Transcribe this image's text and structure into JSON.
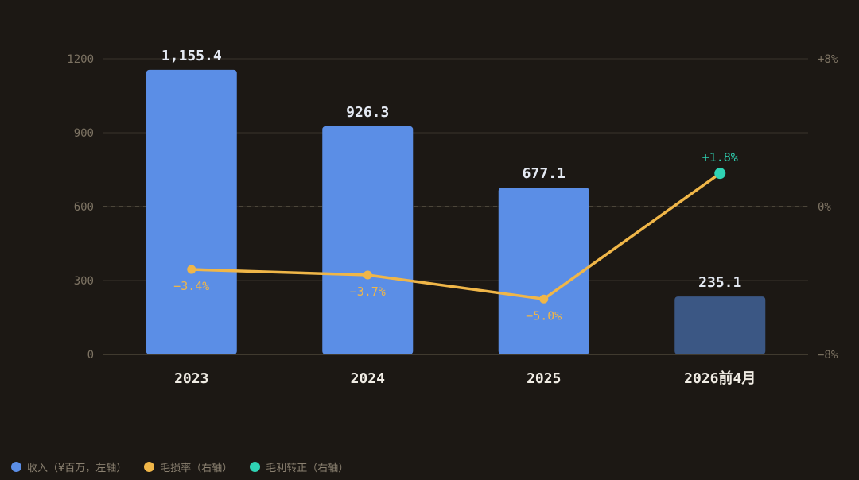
{
  "chart_data": {
    "type": "bar",
    "categories": [
      "2023",
      "2024",
      "2025",
      "2026前4月"
    ],
    "series": [
      {
        "kind": "bar",
        "axis": "left",
        "values": [
          1155.4,
          926.3,
          677.1,
          235.1
        ],
        "labels": [
          "1,155.4",
          "926.3",
          "677.1",
          "235.1"
        ],
        "colors": [
          "#5b8ee6",
          "#5b8ee6",
          "#5b8ee6",
          "#3b5784"
        ]
      },
      {
        "kind": "line",
        "axis": "right",
        "values": [
          -3.4,
          -3.7,
          -5.0,
          1.8
        ],
        "labels": [
          "−3.4%",
          "−3.7%",
          "−5.0%",
          "+1.8%"
        ],
        "color": "#f0b648",
        "highlight_color": "#2fd3b4"
      }
    ],
    "y_left": {
      "ylim": [
        0,
        1200
      ],
      "ticks": [
        0,
        300,
        600,
        900,
        1200
      ],
      "tick_labels": [
        "0",
        "300",
        "600",
        "900",
        "1200"
      ]
    },
    "y_right": {
      "ylim": [
        -8,
        8
      ],
      "ticks": [
        -8,
        0,
        8
      ],
      "tick_labels": [
        "−8%",
        "0%",
        "+8%"
      ]
    },
    "zero_reference_line": "dashed",
    "grid": true,
    "legend_position": "bottom-left",
    "legend": [
      {
        "label": "收入（¥百万，左轴）",
        "color": "#5b8ee6"
      },
      {
        "label": "毛损率（右轴）",
        "color": "#f0b648"
      },
      {
        "label": "毛利转正（右轴）",
        "color": "#2fd3b4"
      }
    ]
  }
}
